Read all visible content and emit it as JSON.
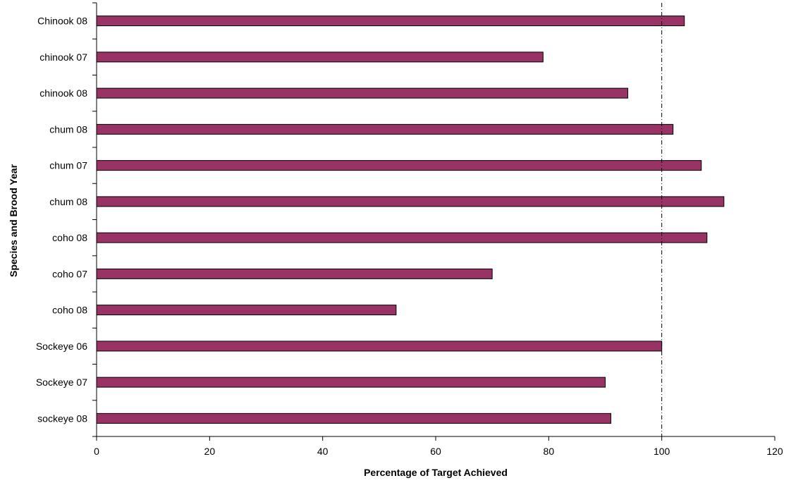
{
  "chart_data": {
    "type": "bar",
    "orientation": "horizontal",
    "title": "",
    "xlabel": "Percentage of Target Achieved",
    "ylabel": "Species and Brood Year",
    "categories": [
      "Chinook 08",
      "chinook 07",
      "chinook 08",
      "chum 08",
      "chum 07",
      "chum 08",
      "coho 08",
      "coho 07",
      "coho 08",
      "Sockeye 06",
      "Sockeye 07",
      "sockeye 08"
    ],
    "values": [
      104,
      79,
      94,
      102,
      107,
      111,
      108,
      70,
      53,
      100,
      90,
      91
    ],
    "xlim": [
      0,
      120
    ],
    "xticks": [
      0,
      20,
      40,
      60,
      80,
      100,
      120
    ],
    "reference_line": 100,
    "grid": false,
    "legend": "none",
    "colors": {
      "bar": "#993366",
      "bar_edge": "#000000",
      "axis": "#000000",
      "reference_line": "#000000"
    }
  }
}
